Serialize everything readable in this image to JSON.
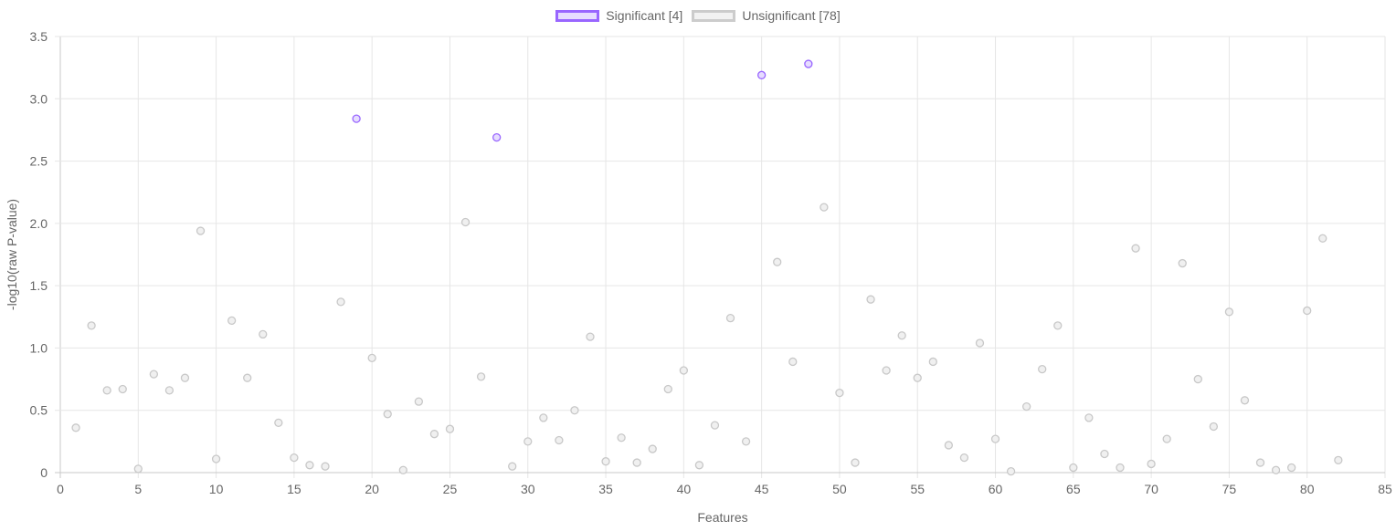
{
  "legend": [
    {
      "label": "Significant [4]",
      "border": "#9966ff",
      "fill": "#e6dcff"
    },
    {
      "label": "Unsignificant [78]",
      "border": "#cccccc",
      "fill": "#f2f2f2"
    }
  ],
  "chart_data": {
    "type": "scatter",
    "xlabel": "Features",
    "ylabel": "-log10(raw P-value)",
    "xlim": [
      0,
      85
    ],
    "ylim": [
      0,
      3.5
    ],
    "x_ticks": [
      "0",
      "5",
      "10",
      "15",
      "20",
      "25",
      "30",
      "35",
      "40",
      "45",
      "50",
      "55",
      "60",
      "65",
      "70",
      "75",
      "80",
      "85"
    ],
    "y_ticks": [
      "0",
      "0.5",
      "1.0",
      "1.5",
      "2.0",
      "2.5",
      "3.0",
      "3.5"
    ],
    "grid": true,
    "legend_position": "top",
    "series": [
      {
        "name": "Significant [4]",
        "border_color": "#9966ff",
        "fill_color": "#e6dcff",
        "points": [
          [
            19,
            2.84
          ],
          [
            28,
            2.69
          ],
          [
            45,
            3.19
          ],
          [
            48,
            3.28
          ]
        ]
      },
      {
        "name": "Unsignificant [78]",
        "border_color": "#c8c8c8",
        "fill_color": "#f0f0f0",
        "points": [
          [
            1,
            0.36
          ],
          [
            2,
            1.18
          ],
          [
            3,
            0.66
          ],
          [
            4,
            0.67
          ],
          [
            5,
            0.03
          ],
          [
            6,
            0.79
          ],
          [
            7,
            0.66
          ],
          [
            8,
            0.76
          ],
          [
            9,
            1.94
          ],
          [
            10,
            0.11
          ],
          [
            11,
            1.22
          ],
          [
            12,
            0.76
          ],
          [
            13,
            1.11
          ],
          [
            14,
            0.4
          ],
          [
            15,
            0.12
          ],
          [
            16,
            0.06
          ],
          [
            17,
            0.05
          ],
          [
            18,
            1.37
          ],
          [
            20,
            0.92
          ],
          [
            21,
            0.47
          ],
          [
            22,
            0.02
          ],
          [
            23,
            0.57
          ],
          [
            24,
            0.31
          ],
          [
            25,
            0.35
          ],
          [
            26,
            2.01
          ],
          [
            27,
            0.77
          ],
          [
            29,
            0.05
          ],
          [
            30,
            0.25
          ],
          [
            31,
            0.44
          ],
          [
            32,
            0.26
          ],
          [
            33,
            0.5
          ],
          [
            34,
            1.09
          ],
          [
            35,
            0.09
          ],
          [
            36,
            0.28
          ],
          [
            37,
            0.08
          ],
          [
            38,
            0.19
          ],
          [
            39,
            0.67
          ],
          [
            40,
            0.82
          ],
          [
            41,
            0.06
          ],
          [
            42,
            0.38
          ],
          [
            43,
            1.24
          ],
          [
            44,
            0.25
          ],
          [
            46,
            1.69
          ],
          [
            47,
            0.89
          ],
          [
            49,
            2.13
          ],
          [
            50,
            0.64
          ],
          [
            51,
            0.08
          ],
          [
            52,
            1.39
          ],
          [
            53,
            0.82
          ],
          [
            54,
            1.1
          ],
          [
            55,
            0.76
          ],
          [
            56,
            0.89
          ],
          [
            57,
            0.22
          ],
          [
            58,
            0.12
          ],
          [
            59,
            1.04
          ],
          [
            60,
            0.27
          ],
          [
            61,
            0.01
          ],
          [
            62,
            0.53
          ],
          [
            63,
            0.83
          ],
          [
            64,
            1.18
          ],
          [
            65,
            0.04
          ],
          [
            66,
            0.44
          ],
          [
            67,
            0.15
          ],
          [
            68,
            0.04
          ],
          [
            69,
            1.8
          ],
          [
            70,
            0.07
          ],
          [
            71,
            0.27
          ],
          [
            72,
            1.68
          ],
          [
            73,
            0.75
          ],
          [
            74,
            0.37
          ],
          [
            75,
            1.29
          ],
          [
            76,
            0.58
          ],
          [
            77,
            0.08
          ],
          [
            78,
            0.02
          ],
          [
            79,
            0.04
          ],
          [
            80,
            1.3
          ],
          [
            81,
            1.88
          ],
          [
            82,
            0.1
          ]
        ]
      }
    ]
  }
}
